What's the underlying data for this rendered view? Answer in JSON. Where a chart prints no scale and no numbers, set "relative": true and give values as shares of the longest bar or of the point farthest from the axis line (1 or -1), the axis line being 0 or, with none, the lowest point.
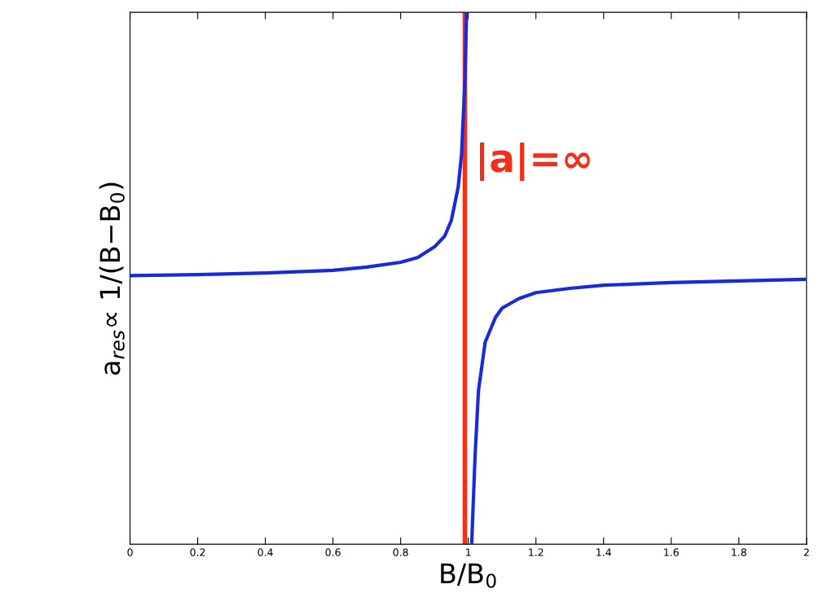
{
  "chart_data": {
    "type": "line",
    "relative": true,
    "xlabel": "B/B$_{0}$",
    "ylabel": "a$_{res}$∝ 1/(B−B$_{0}$)",
    "xlim": [
      0,
      2
    ],
    "xticks": [
      0,
      0.2,
      0.4,
      0.6,
      0.8,
      1,
      1.2,
      1.4,
      1.6,
      1.8,
      2
    ],
    "tick_labels": "x",
    "grid": false,
    "legend": false,
    "series": [
      {
        "color": "#1a2bd6",
        "x": [
          0,
          0.2,
          0.4,
          0.6,
          0.7,
          0.8,
          0.85,
          0.9,
          0.93,
          0.95,
          0.97,
          0.98,
          0.99,
          0.995,
          1.0,
          1.01,
          1.02,
          1.03,
          1.05,
          1.08,
          1.1,
          1.15,
          1.2,
          1.3,
          1.4,
          1.6,
          1.8,
          2
        ],
        "values": [
          0.505,
          0.507,
          0.51,
          0.515,
          0.521,
          0.53,
          0.539,
          0.559,
          0.579,
          0.609,
          0.671,
          0.732,
          0.87,
          1,
          null,
          0,
          0.165,
          0.288,
          0.38,
          0.426,
          0.444,
          0.462,
          0.473,
          0.481,
          0.487,
          0.492,
          0.495,
          0.498
        ]
      }
    ],
    "ref_lines": [
      {
        "axis": "x",
        "value": 0.99,
        "label": "|a|=∞",
        "color": "#f0301a"
      }
    ]
  }
}
